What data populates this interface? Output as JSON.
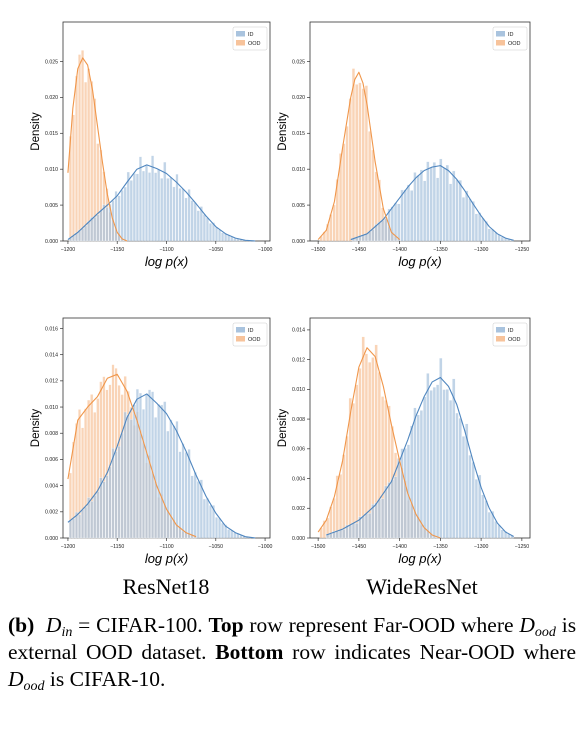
{
  "colors": {
    "id": "#4f86bf",
    "id_fill": "#a9c3de",
    "ood": "#f0964a",
    "ood_fill": "#f7c39b"
  },
  "chart_data": [
    {
      "type": "histogram",
      "panel": "top-left",
      "xlabel": "log p(x)",
      "ylabel": "Density",
      "xlim": [
        -1205,
        -995
      ],
      "ylim": [
        0,
        0.0305
      ],
      "xticks": [
        -1200,
        -1150,
        -1100,
        -1050,
        -1000
      ],
      "yticks": [
        0,
        0.005,
        0.01,
        0.015,
        0.02,
        0.025
      ],
      "ytick_labels": [
        "0.000",
        "0.005",
        "0.010",
        "0.015",
        "0.020",
        "0.025"
      ],
      "legend": {
        "position": "top-right",
        "entries": [
          "ID",
          "OOD"
        ]
      },
      "series": [
        {
          "name": "ID",
          "kde_x": [
            -1200,
            -1190,
            -1180,
            -1170,
            -1160,
            -1150,
            -1140,
            -1130,
            -1120,
            -1110,
            -1100,
            -1090,
            -1080,
            -1070,
            -1060,
            -1050,
            -1040,
            -1030,
            -1020,
            -1010
          ],
          "kde_y": [
            0.0002,
            0.0012,
            0.0025,
            0.0038,
            0.005,
            0.0063,
            0.0082,
            0.01,
            0.0106,
            0.0101,
            0.0094,
            0.0082,
            0.0068,
            0.0052,
            0.0035,
            0.002,
            0.001,
            0.0004,
            0.0001,
            0.0
          ]
        },
        {
          "name": "OOD",
          "kde_x": [
            -1200,
            -1195,
            -1190,
            -1185,
            -1180,
            -1175,
            -1170,
            -1165,
            -1160,
            -1155,
            -1150,
            -1145,
            -1140
          ],
          "kde_y": [
            0.0095,
            0.0185,
            0.024,
            0.0255,
            0.0245,
            0.021,
            0.016,
            0.011,
            0.0065,
            0.0032,
            0.0012,
            0.0003,
            0.0
          ]
        }
      ]
    },
    {
      "type": "histogram",
      "panel": "top-right",
      "xlabel": "log p(x)",
      "ylabel": "Density",
      "xlim": [
        -1510,
        -1240
      ],
      "ylim": [
        0,
        0.0305
      ],
      "xticks": [
        -1500,
        -1450,
        -1400,
        -1350,
        -1300,
        -1250
      ],
      "yticks": [
        0,
        0.005,
        0.01,
        0.015,
        0.02,
        0.025
      ],
      "ytick_labels": [
        "0.000",
        "0.005",
        "0.010",
        "0.015",
        "0.020",
        "0.025"
      ],
      "legend": {
        "position": "top-right",
        "entries": [
          "ID",
          "OOD"
        ]
      },
      "series": [
        {
          "name": "ID",
          "kde_x": [
            -1460,
            -1440,
            -1420,
            -1400,
            -1390,
            -1380,
            -1370,
            -1360,
            -1350,
            -1340,
            -1330,
            -1320,
            -1310,
            -1300,
            -1290,
            -1280,
            -1270,
            -1260
          ],
          "kde_y": [
            0.0002,
            0.001,
            0.003,
            0.006,
            0.0075,
            0.0088,
            0.0098,
            0.0103,
            0.0105,
            0.0098,
            0.0086,
            0.007,
            0.0052,
            0.0035,
            0.002,
            0.001,
            0.0004,
            0.0001
          ]
        },
        {
          "name": "OOD",
          "kde_x": [
            -1500,
            -1490,
            -1480,
            -1470,
            -1460,
            -1455,
            -1450,
            -1445,
            -1440,
            -1430,
            -1420,
            -1410,
            -1400
          ],
          "kde_y": [
            0.0002,
            0.0015,
            0.0055,
            0.013,
            0.02,
            0.0225,
            0.0235,
            0.022,
            0.019,
            0.011,
            0.0045,
            0.0012,
            0.0002
          ]
        }
      ]
    },
    {
      "type": "histogram",
      "panel": "bottom-left",
      "xlabel": "log p(x)",
      "ylabel": "Density",
      "xlim": [
        -1205,
        -995
      ],
      "ylim": [
        0,
        0.0168
      ],
      "xticks": [
        -1200,
        -1150,
        -1100,
        -1050,
        -1000
      ],
      "yticks": [
        0,
        0.002,
        0.004,
        0.006,
        0.008,
        0.01,
        0.012,
        0.014,
        0.016
      ],
      "ytick_labels": [
        "0.000",
        "0.002",
        "0.004",
        "0.006",
        "0.008",
        "0.010",
        "0.012",
        "0.014",
        "0.016"
      ],
      "legend": {
        "position": "top-right",
        "entries": [
          "ID",
          "OOD"
        ]
      },
      "series": [
        {
          "name": "ID",
          "kde_x": [
            -1200,
            -1190,
            -1180,
            -1170,
            -1160,
            -1150,
            -1140,
            -1130,
            -1120,
            -1110,
            -1100,
            -1090,
            -1080,
            -1070,
            -1060,
            -1050,
            -1040,
            -1030,
            -1020,
            -1010
          ],
          "kde_y": [
            0.0012,
            0.0018,
            0.0026,
            0.0036,
            0.005,
            0.007,
            0.0092,
            0.0106,
            0.011,
            0.0103,
            0.0095,
            0.0082,
            0.0066,
            0.0048,
            0.0032,
            0.0019,
            0.0009,
            0.0004,
            0.0001,
            0.0
          ]
        },
        {
          "name": "OOD",
          "kde_x": [
            -1200,
            -1190,
            -1180,
            -1170,
            -1160,
            -1150,
            -1140,
            -1130,
            -1120,
            -1110,
            -1100,
            -1090,
            -1080,
            -1070
          ],
          "kde_y": [
            0.0045,
            0.009,
            0.01,
            0.0108,
            0.0122,
            0.0125,
            0.0112,
            0.009,
            0.0065,
            0.004,
            0.0022,
            0.001,
            0.0004,
            0.0001
          ]
        }
      ]
    },
    {
      "type": "histogram",
      "panel": "bottom-right",
      "xlabel": "log p(x)",
      "ylabel": "Density",
      "xlim": [
        -1510,
        -1240
      ],
      "ylim": [
        0,
        0.0148
      ],
      "xticks": [
        -1500,
        -1450,
        -1400,
        -1350,
        -1300,
        -1250
      ],
      "yticks": [
        0,
        0.002,
        0.004,
        0.006,
        0.008,
        0.01,
        0.012,
        0.014
      ],
      "ytick_labels": [
        "0.000",
        "0.002",
        "0.004",
        "0.006",
        "0.008",
        "0.010",
        "0.012",
        "0.014"
      ],
      "legend": {
        "position": "top-right",
        "entries": [
          "ID",
          "OOD"
        ]
      },
      "series": [
        {
          "name": "ID",
          "kde_x": [
            -1490,
            -1470,
            -1450,
            -1430,
            -1410,
            -1400,
            -1390,
            -1380,
            -1370,
            -1360,
            -1350,
            -1340,
            -1330,
            -1320,
            -1310,
            -1300,
            -1290,
            -1280,
            -1270,
            -1260
          ],
          "kde_y": [
            0.0002,
            0.0006,
            0.0012,
            0.0022,
            0.0038,
            0.0052,
            0.0066,
            0.0082,
            0.0095,
            0.0105,
            0.0108,
            0.0102,
            0.009,
            0.0072,
            0.0052,
            0.0034,
            0.002,
            0.001,
            0.0004,
            0.0001
          ]
        },
        {
          "name": "OOD",
          "kde_x": [
            -1500,
            -1490,
            -1480,
            -1470,
            -1460,
            -1450,
            -1440,
            -1430,
            -1420,
            -1410,
            -1400,
            -1390,
            -1380,
            -1370,
            -1360,
            -1350
          ],
          "kde_y": [
            0.0004,
            0.0012,
            0.0028,
            0.0052,
            0.0085,
            0.0115,
            0.0128,
            0.0122,
            0.0102,
            0.0076,
            0.0052,
            0.003,
            0.0016,
            0.0007,
            0.0002,
            0.0
          ]
        }
      ]
    }
  ],
  "column_labels": [
    "ResNet18",
    "WideResNet"
  ],
  "caption": {
    "marker": "(b)",
    "d_in": "D",
    "d_in_sub": "in",
    "eq": "= CIFAR-100.",
    "top_word": "Top",
    "text1": "row represent Far-OOD where",
    "d_ood": "D",
    "d_ood_sub": "ood",
    "text2": "is external OOD dataset.",
    "bottom_word": "Bottom",
    "text3": "row indicates Near-OOD where",
    "text4": "is CIFAR-10."
  }
}
